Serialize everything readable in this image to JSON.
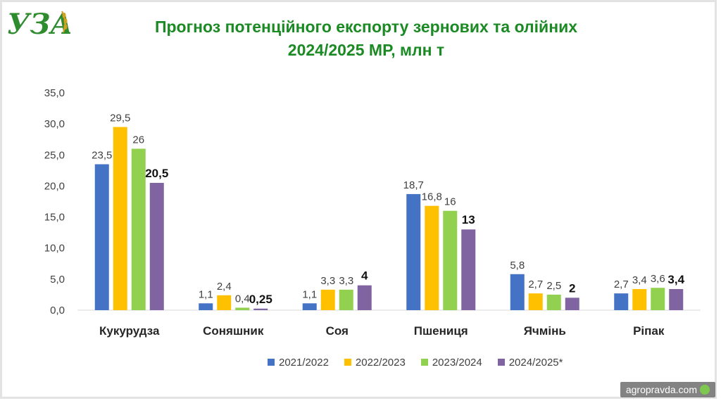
{
  "logo": {
    "text": "УЗА"
  },
  "title": {
    "line1": "Прогноз потенційного експорту зернових та олійних",
    "line2": "2024/2025 МР, млн т"
  },
  "watermark": "agropravda.com",
  "chart_data": {
    "type": "bar",
    "categories": [
      "Кукурудза",
      "Соняшник",
      "Соя",
      "Пшениця",
      "Ячмінь",
      "Ріпак"
    ],
    "series": [
      {
        "name": "2021/2022",
        "color": "#4472C4",
        "values": [
          23.5,
          1.1,
          1.1,
          18.7,
          5.8,
          2.7
        ],
        "labels": [
          "23,5",
          "1,1",
          "1,1",
          "18,7",
          "5,8",
          "2,7"
        ],
        "bold": false
      },
      {
        "name": "2022/2023",
        "color": "#FFC000",
        "values": [
          29.5,
          2.4,
          3.3,
          16.8,
          2.7,
          3.4
        ],
        "labels": [
          "29,5",
          "2,4",
          "3,3",
          "16,8",
          "2,7",
          "3,4"
        ],
        "bold": false
      },
      {
        "name": "2023/2024",
        "color": "#92D050",
        "values": [
          26,
          0.4,
          3.3,
          16,
          2.5,
          3.6
        ],
        "labels": [
          "26",
          "0,4",
          "3,3",
          "16",
          "2,5",
          "3,6"
        ],
        "bold": false
      },
      {
        "name": "2024/2025*",
        "color": "#8064A2",
        "values": [
          20.5,
          0.25,
          4,
          13,
          2,
          3.4
        ],
        "labels": [
          "20,5",
          "0,25",
          "4",
          "13",
          "2",
          "3,4"
        ],
        "bold": true
      }
    ],
    "y_ticks": [
      "0,0",
      "5,0",
      "10,0",
      "15,0",
      "20,0",
      "25,0",
      "30,0",
      "35,0"
    ],
    "ylim": [
      0,
      35
    ],
    "grid": false,
    "legend_position": "bottom"
  }
}
